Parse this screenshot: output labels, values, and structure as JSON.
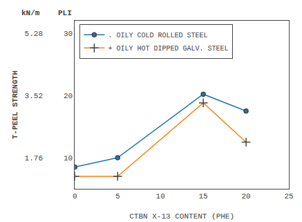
{
  "chart_data": {
    "type": "line",
    "x": [
      0,
      5,
      15,
      20
    ],
    "series": [
      {
        "name": ". OILY COLD ROLLED STEEL",
        "values": [
          8.5,
          10.0,
          20.2,
          17.5
        ],
        "marker": "dot"
      },
      {
        "name": "+ OILY HOT DIPPED GALV. STEEL",
        "values": [
          7.0,
          7.0,
          18.8,
          12.5
        ],
        "marker": "plus"
      }
    ],
    "xlabel": "CTBN X-13 CONTENT (PHE)",
    "ylabel": "T-PEEL STRENGTH",
    "xlim": [
      0,
      25
    ],
    "xticks": [
      0,
      5,
      10,
      15,
      20,
      25
    ],
    "ylim": [
      5,
      32
    ],
    "yticks": [
      10,
      20,
      30
    ],
    "y2lim": [
      0.88,
      5.632
    ],
    "y2ticks": [
      1.76,
      3.52,
      5.28
    ],
    "annotations": [
      {
        "text": "PLI",
        "axis": "y"
      },
      {
        "text": "kN/m",
        "axis": "y2"
      }
    ],
    "grid": false,
    "legend": "upper left"
  }
}
